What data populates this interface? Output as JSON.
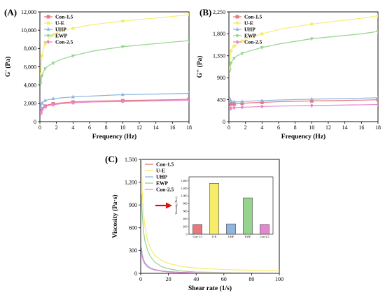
{
  "colors": {
    "Con-1.5": "#e8777e",
    "U-E": "#f6ec6a",
    "UHP": "#8fb4dd",
    "EWP": "#95d38e",
    "Con-2.5": "#e487cf",
    "arrow": "#e01010"
  },
  "chart_data": [
    {
      "panel": "(A)",
      "type": "line",
      "xlabel": "Frequency (Hz)",
      "ylabel": "G' (Pa)",
      "xlim": [
        0,
        18
      ],
      "ylim": [
        0,
        12000
      ],
      "xticks": [
        0,
        2,
        4,
        6,
        8,
        10,
        12,
        14,
        16,
        18
      ],
      "yticks": [
        0,
        2000,
        4000,
        6000,
        8000,
        10000,
        12000
      ],
      "ytick_labels": [
        "0",
        "2,000",
        "4,000",
        "6,000",
        "8,000",
        "10,000",
        "12,000"
      ],
      "legend": "top-left",
      "series": [
        {
          "name": "Con-1.5",
          "marker": "square",
          "x": [
            0.1,
            0.16,
            0.25,
            0.4,
            0.63,
            1,
            1.6,
            2.5,
            4,
            6.3,
            10,
            16,
            18
          ],
          "y": [
            1000,
            1200,
            1400,
            1550,
            1700,
            1850,
            1950,
            2050,
            2150,
            2250,
            2300,
            2400,
            2450
          ]
        },
        {
          "name": "U-E",
          "marker": "circle",
          "x": [
            0.1,
            0.16,
            0.25,
            0.4,
            0.63,
            1,
            1.6,
            2.5,
            4,
            6.3,
            10,
            16,
            18
          ],
          "y": [
            5200,
            6400,
            7200,
            7900,
            8500,
            9000,
            9500,
            9900,
            10200,
            10600,
            11000,
            11500,
            11700
          ]
        },
        {
          "name": "UHP",
          "marker": "triangle-up",
          "x": [
            0.1,
            0.16,
            0.25,
            0.4,
            0.63,
            1,
            1.6,
            2.5,
            4,
            6.3,
            10,
            16,
            18
          ],
          "y": [
            1500,
            1800,
            2000,
            2150,
            2300,
            2400,
            2500,
            2600,
            2700,
            2800,
            2950,
            3050,
            3100
          ]
        },
        {
          "name": "EWP",
          "marker": "triangle-down",
          "x": [
            0.1,
            0.16,
            0.25,
            0.4,
            0.63,
            1,
            1.6,
            2.5,
            4,
            6.3,
            10,
            16,
            18
          ],
          "y": [
            4200,
            4600,
            5000,
            5400,
            5800,
            6100,
            6400,
            6800,
            7200,
            7700,
            8200,
            8700,
            8850
          ]
        },
        {
          "name": "Con-2.5",
          "marker": "diamond",
          "x": [
            0.1,
            0.16,
            0.25,
            0.4,
            0.63,
            1,
            1.6,
            2.5,
            4,
            6.3,
            10,
            16,
            18
          ],
          "y": [
            900,
            1100,
            1300,
            1450,
            1600,
            1750,
            1850,
            1950,
            2050,
            2150,
            2200,
            2300,
            2350
          ]
        }
      ]
    },
    {
      "panel": "(B)",
      "type": "line",
      "xlabel": "Frequency (Hz)",
      "ylabel": "G'' (Pa)",
      "xlim": [
        0,
        18
      ],
      "ylim": [
        0,
        2250
      ],
      "xticks": [
        0,
        2,
        4,
        6,
        8,
        10,
        12,
        14,
        16,
        18
      ],
      "yticks": [
        0,
        450,
        900,
        1350,
        1800,
        2250
      ],
      "ytick_labels": [
        "0",
        "450",
        "900",
        "1,350",
        "1,800",
        "2,250"
      ],
      "legend": "top-left",
      "series": [
        {
          "name": "Con-1.5",
          "marker": "square",
          "x": [
            0.1,
            0.16,
            0.25,
            0.4,
            0.63,
            1,
            1.6,
            2.5,
            4,
            6.3,
            10,
            16,
            18
          ],
          "y": [
            390,
            370,
            360,
            355,
            360,
            365,
            375,
            385,
            395,
            410,
            425,
            440,
            450
          ]
        },
        {
          "name": "U-E",
          "marker": "circle",
          "x": [
            0.1,
            0.16,
            0.25,
            0.4,
            0.63,
            1,
            1.6,
            2.5,
            4,
            6.3,
            10,
            16,
            18
          ],
          "y": [
            1100,
            1350,
            1450,
            1500,
            1550,
            1600,
            1650,
            1720,
            1800,
            1900,
            2000,
            2120,
            2170
          ]
        },
        {
          "name": "UHP",
          "marker": "triangle-up",
          "x": [
            0.1,
            0.16,
            0.25,
            0.4,
            0.63,
            1,
            1.6,
            2.5,
            4,
            6.3,
            10,
            16,
            18
          ],
          "y": [
            470,
            440,
            420,
            410,
            405,
            405,
            410,
            420,
            430,
            445,
            460,
            480,
            490
          ]
        },
        {
          "name": "EWP",
          "marker": "triangle-down",
          "x": [
            0.1,
            0.16,
            0.25,
            0.4,
            0.63,
            1,
            1.6,
            2.5,
            4,
            6.3,
            10,
            16,
            18
          ],
          "y": [
            1050,
            1150,
            1200,
            1250,
            1300,
            1350,
            1400,
            1450,
            1520,
            1600,
            1700,
            1800,
            1850
          ]
        },
        {
          "name": "Con-2.5",
          "marker": "diamond",
          "x": [
            0.1,
            0.16,
            0.25,
            0.4,
            0.63,
            1,
            1.6,
            2.5,
            4,
            6.3,
            10,
            16,
            18
          ],
          "y": [
            260,
            270,
            275,
            280,
            285,
            290,
            295,
            300,
            310,
            320,
            330,
            345,
            350
          ]
        }
      ]
    },
    {
      "panel": "(C)",
      "type": "line",
      "xlabel": "Shear rate (1/s)",
      "ylabel": "Viscosity (Pa·s)",
      "xlim": [
        0,
        100
      ],
      "ylim": [
        0,
        1500
      ],
      "xticks": [
        0,
        20,
        40,
        60,
        80,
        100
      ],
      "yticks": [
        0,
        300,
        600,
        900,
        1200,
        1500
      ],
      "ytick_labels": [
        "0",
        "300",
        "600",
        "900",
        "1,200",
        "1,500"
      ],
      "legend": "top-left",
      "series": [
        {
          "name": "Con-1.5",
          "x": [
            0.5,
            1,
            2,
            3,
            5,
            7,
            10,
            15,
            20,
            30,
            40,
            60,
            80,
            100
          ],
          "y": [
            340,
            250,
            180,
            140,
            95,
            70,
            50,
            32,
            22,
            12,
            8,
            5,
            3,
            2
          ]
        },
        {
          "name": "U-E",
          "x": [
            0.5,
            1,
            2,
            3,
            5,
            7,
            10,
            15,
            20,
            30,
            40,
            60,
            80,
            100
          ],
          "y": [
            1500,
            1100,
            800,
            620,
            430,
            330,
            240,
            170,
            130,
            90,
            70,
            50,
            40,
            32
          ]
        },
        {
          "name": "UHP",
          "x": [
            0.5,
            1,
            2,
            3,
            5,
            7,
            10,
            15,
            20,
            30,
            40,
            60,
            80,
            100
          ],
          "y": [
            340,
            250,
            180,
            140,
            95,
            70,
            50,
            32,
            22,
            12,
            8,
            5,
            3,
            2
          ]
        },
        {
          "name": "EWP",
          "x": [
            0.5,
            1,
            2,
            3,
            5,
            7,
            10,
            15,
            20,
            30,
            40,
            60,
            80,
            100
          ],
          "y": [
            1050,
            800,
            560,
            430,
            300,
            220,
            150,
            90,
            60,
            30,
            18,
            10,
            7,
            5
          ]
        },
        {
          "name": "Con-2.5",
          "x": [
            0.5,
            1,
            2,
            3,
            5,
            7,
            10,
            15,
            20,
            30,
            40,
            60,
            80,
            100
          ],
          "y": [
            300,
            220,
            160,
            125,
            85,
            62,
            45,
            28,
            18,
            10,
            6,
            4,
            2,
            1
          ]
        }
      ],
      "inset": {
        "type": "bar",
        "ylabel": "Viscosity (Pa·s)",
        "categories": [
          "Con-1.5",
          "U-E",
          "UHP",
          "EWP",
          "Con-2.5"
        ],
        "values": [
          250,
          1330,
          270,
          950,
          250
        ],
        "ylim": [
          0,
          1500
        ],
        "yticks": [
          0,
          200,
          400,
          600,
          800,
          1000,
          1200,
          1400
        ],
        "ytick_labels": [
          "0",
          "200",
          "400",
          "600",
          "800",
          "1,000",
          "1,200",
          "1,400"
        ]
      }
    }
  ]
}
